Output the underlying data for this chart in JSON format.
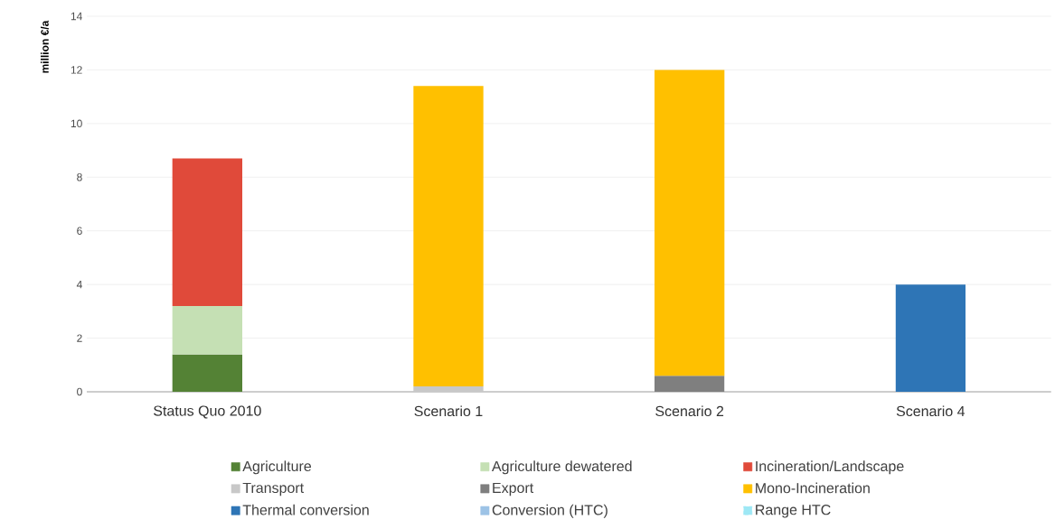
{
  "chart_data": {
    "type": "bar",
    "stacked": true,
    "ylabel": "million €/a",
    "categories": [
      "Status Quo 2010",
      "Scenario 1",
      "Scenario 2",
      "Scenario 4"
    ],
    "series": [
      {
        "name": "Agriculture",
        "color": "#548235",
        "values": [
          1.4,
          null,
          null,
          null
        ]
      },
      {
        "name": "Agriculture dewatered",
        "color": "#c5e0b4",
        "values": [
          1.8,
          null,
          null,
          null
        ]
      },
      {
        "name": "Incineration/Landscape",
        "color": "#e04a3a",
        "values": [
          5.5,
          null,
          null,
          null
        ]
      },
      {
        "name": "Transport",
        "color": "#c8c8c8",
        "values": [
          null,
          0.2,
          null,
          null
        ]
      },
      {
        "name": "Export",
        "color": "#7f7f7f",
        "values": [
          null,
          null,
          0.6,
          null
        ]
      },
      {
        "name": "Mono-Incineration",
        "color": "#ffc000",
        "values": [
          null,
          11.2,
          11.4,
          null
        ]
      },
      {
        "name": "Thermal conversion",
        "color": "#2e75b6",
        "values": [
          null,
          null,
          null,
          4.0
        ]
      },
      {
        "name": "Conversion (HTC)",
        "color": "#9dc3e6",
        "values": [
          null,
          null,
          null,
          null
        ]
      },
      {
        "name": "Range HTC",
        "color": "#9ee8f5",
        "values": [
          null,
          null,
          null,
          null
        ]
      }
    ],
    "ylim": [
      0,
      14
    ],
    "yticks": [
      0,
      2,
      4,
      6,
      8,
      10,
      12,
      14
    ],
    "grid": "y",
    "legend": "bottom"
  }
}
